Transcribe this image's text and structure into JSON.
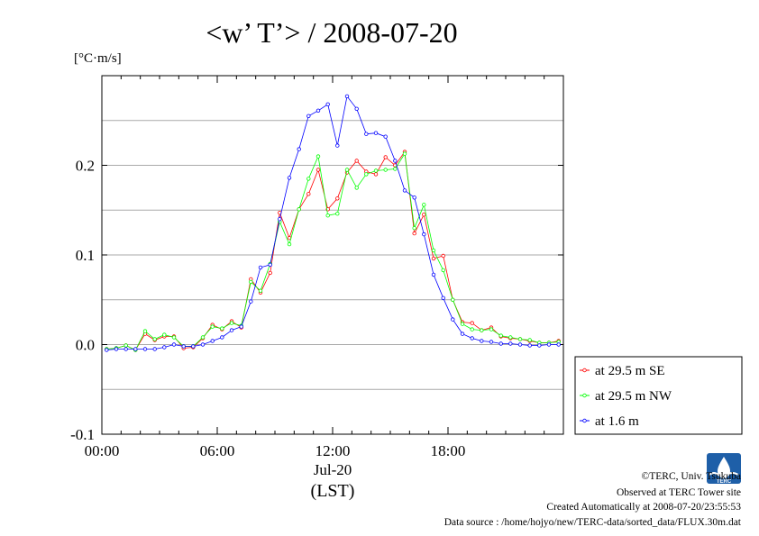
{
  "chart_data": {
    "type": "line",
    "title": "<w’ T’> / 2008-07-20",
    "ylabel": "[°C·m/s]",
    "xlabel_date": "Jul-20",
    "xlabel_zone": "(LST)",
    "xlim": [
      0,
      24
    ],
    "ylim": [
      -0.1,
      0.3
    ],
    "x_ticks": [
      {
        "value": 0,
        "label": "00:00"
      },
      {
        "value": 6,
        "label": "06:00"
      },
      {
        "value": 12,
        "label": "12:00"
      },
      {
        "value": 18,
        "label": "18:00"
      }
    ],
    "y_ticks": [
      {
        "value": -0.1,
        "label": "-0.1"
      },
      {
        "value": 0.0,
        "label": "0.0"
      },
      {
        "value": 0.1,
        "label": "0.1"
      },
      {
        "value": 0.2,
        "label": "0.2"
      }
    ],
    "grid": true,
    "legend_position": "bottom-right outside",
    "x": [
      0.25,
      0.75,
      1.25,
      1.75,
      2.25,
      2.75,
      3.25,
      3.75,
      4.25,
      4.75,
      5.25,
      5.75,
      6.25,
      6.75,
      7.25,
      7.75,
      8.25,
      8.75,
      9.25,
      9.75,
      10.25,
      10.75,
      11.25,
      11.75,
      12.25,
      12.75,
      13.25,
      13.75,
      14.25,
      14.75,
      15.25,
      15.75,
      16.25,
      16.75,
      17.25,
      17.75,
      18.25,
      18.75,
      19.25,
      19.75,
      20.25,
      20.75,
      21.25,
      21.75,
      22.25,
      22.75,
      23.25,
      23.75
    ],
    "series": [
      {
        "name": "at 29.5 m SE",
        "color": "#ff0000",
        "values": [
          -0.005,
          -0.004,
          -0.001,
          -0.006,
          0.012,
          0.005,
          0.009,
          0.009,
          -0.004,
          -0.003,
          0.007,
          0.022,
          0.017,
          0.026,
          0.019,
          0.073,
          0.058,
          0.08,
          0.147,
          0.119,
          0.151,
          0.168,
          0.195,
          0.151,
          0.163,
          0.192,
          0.205,
          0.193,
          0.19,
          0.209,
          0.2,
          0.215,
          0.124,
          0.145,
          0.096,
          0.099,
          0.05,
          0.025,
          0.024,
          0.016,
          0.019,
          0.009,
          0.007,
          0.006,
          0.004,
          0.002,
          0.002,
          0.004
        ]
      },
      {
        "name": "at 29.5 m NW",
        "color": "#00ff00",
        "values": [
          -0.005,
          -0.004,
          -0.001,
          -0.006,
          0.015,
          0.006,
          0.011,
          0.008,
          -0.002,
          -0.002,
          0.008,
          0.02,
          0.018,
          0.024,
          0.021,
          0.07,
          0.06,
          0.09,
          0.137,
          0.112,
          0.151,
          0.185,
          0.21,
          0.144,
          0.146,
          0.195,
          0.175,
          0.19,
          0.194,
          0.195,
          0.196,
          0.213,
          0.13,
          0.156,
          0.105,
          0.083,
          0.05,
          0.023,
          0.017,
          0.016,
          0.017,
          0.01,
          0.008,
          0.006,
          0.005,
          0.002,
          0.002,
          0.003
        ]
      },
      {
        "name": "at 1.6 m",
        "color": "#0000ff",
        "values": [
          -0.006,
          -0.005,
          -0.005,
          -0.005,
          -0.005,
          -0.005,
          -0.003,
          0.0,
          -0.002,
          -0.002,
          0.0,
          0.004,
          0.008,
          0.016,
          0.02,
          0.048,
          0.086,
          0.089,
          0.14,
          0.186,
          0.218,
          0.255,
          0.261,
          0.268,
          0.222,
          0.277,
          0.263,
          0.235,
          0.236,
          0.232,
          0.205,
          0.172,
          0.164,
          0.123,
          0.078,
          0.052,
          0.028,
          0.012,
          0.007,
          0.004,
          0.003,
          0.001,
          0.001,
          0.0,
          -0.001,
          -0.001,
          0.0,
          0.0
        ]
      }
    ]
  },
  "footer": {
    "copyright": "©TERC, Univ. Tsukuba",
    "site": "Observed at TERC Tower site",
    "created": "Created Automatically at 2008-07-20/23:55:53",
    "source": "Data source : /home/hojyo/new/TERC-data/sorted_data/FLUX.30m.dat"
  },
  "logo": {
    "text": "TERC",
    "color": "#1e5fa8"
  }
}
